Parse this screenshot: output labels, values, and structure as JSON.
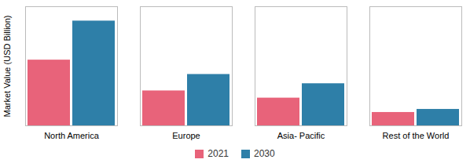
{
  "chart_data": {
    "type": "bar",
    "ylabel": "Market Value (USD Billion)",
    "categories": [
      "North America",
      "Europe",
      "Asia- Pacific",
      "Rest of the World"
    ],
    "series": [
      {
        "name": "2021",
        "color": "#e8637a",
        "values": [
          3.2,
          1.7,
          1.35,
          0.65
        ]
      },
      {
        "name": "2030",
        "color": "#2e7fa8",
        "values": [
          5.1,
          2.5,
          2.05,
          0.8
        ]
      }
    ],
    "ylim": [
      0,
      5.8
    ],
    "yticks": [],
    "grid": false,
    "legend": "bottom",
    "tick_labels": "x"
  }
}
